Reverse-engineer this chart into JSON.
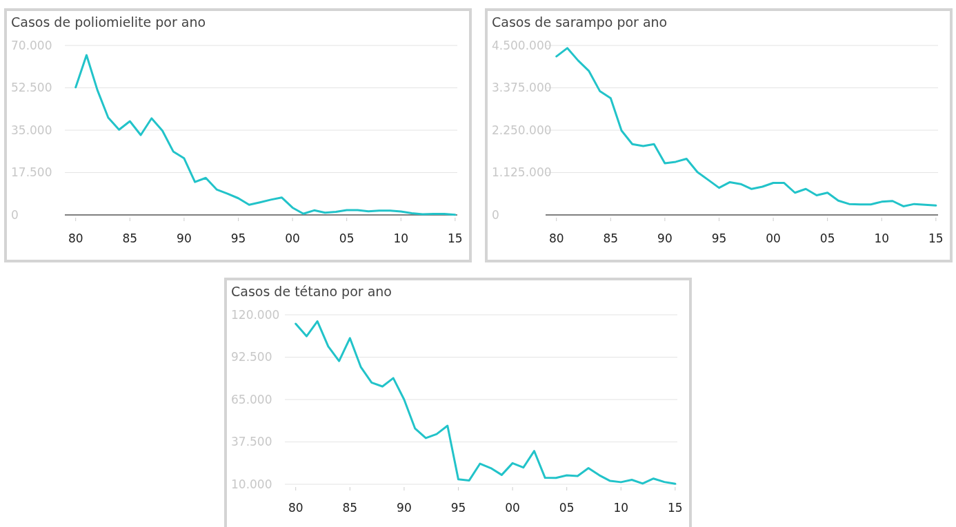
{
  "chart_data": [
    {
      "type": "line",
      "title": "Casos de poliomielite por ano",
      "x": [
        1980,
        1981,
        1982,
        1983,
        1984,
        1985,
        1986,
        1987,
        1988,
        1989,
        1990,
        1991,
        1992,
        1993,
        1994,
        1995,
        1996,
        1997,
        1998,
        1999,
        2000,
        2001,
        2002,
        2003,
        2004,
        2005,
        2006,
        2007,
        2008,
        2009,
        2010,
        2011,
        2012,
        2013,
        2014,
        2015
      ],
      "series": [
        {
          "color": "#22c3c9",
          "values": [
            52700,
            66000,
            51600,
            40200,
            35200,
            38700,
            33000,
            39900,
            34800,
            26200,
            23400,
            13600,
            15300,
            10500,
            8800,
            6900,
            4200,
            5200,
            6300,
            7200,
            3000,
            500,
            1900,
            900,
            1300,
            2000,
            2000,
            1500,
            1800,
            1800,
            1400,
            700,
            300,
            400,
            400,
            100
          ]
        }
      ],
      "xlim": [
        1979,
        2015.2
      ],
      "xticks": [
        {
          "value": 1980,
          "label": "80"
        },
        {
          "value": 1985,
          "label": "85"
        },
        {
          "value": 1990,
          "label": "90"
        },
        {
          "value": 1995,
          "label": "95"
        },
        {
          "value": 2000,
          "label": "00"
        },
        {
          "value": 2005,
          "label": "05"
        },
        {
          "value": 2010,
          "label": "10"
        },
        {
          "value": 2015,
          "label": "15"
        }
      ],
      "ylim": [
        0,
        70000
      ],
      "yticks": [
        0,
        {
          "value": 17500,
          "label": "17.500"
        },
        {
          "value": 35000,
          "label": "35.000"
        },
        {
          "value": 52500,
          "label": "52.500"
        },
        {
          "value": 70000,
          "label": "70.000"
        }
      ],
      "grid": "y"
    },
    {
      "type": "line",
      "title": "Casos de sarampo por ano",
      "x": [
        1980,
        1981,
        1982,
        1983,
        1984,
        1985,
        1986,
        1987,
        1988,
        1989,
        1990,
        1991,
        1992,
        1993,
        1994,
        1995,
        1996,
        1997,
        1998,
        1999,
        2000,
        2001,
        2002,
        2003,
        2004,
        2005,
        2006,
        2007,
        2008,
        2009,
        2010,
        2011,
        2012,
        2013,
        2014,
        2015
      ],
      "series": [
        {
          "color": "#22c3c9",
          "values": [
            4210000,
            4430000,
            4100000,
            3820000,
            3290000,
            3100000,
            2240000,
            1880000,
            1830000,
            1880000,
            1370000,
            1410000,
            1490000,
            1140000,
            930000,
            720000,
            870000,
            820000,
            690000,
            750000,
            850000,
            850000,
            590000,
            690000,
            520000,
            590000,
            380000,
            290000,
            280000,
            280000,
            350000,
            370000,
            230000,
            290000,
            270000,
            250000
          ]
        }
      ],
      "xlim": [
        1979,
        2015.2
      ],
      "xticks": [
        {
          "value": 1980,
          "label": "80"
        },
        {
          "value": 1985,
          "label": "85"
        },
        {
          "value": 1990,
          "label": "90"
        },
        {
          "value": 1995,
          "label": "95"
        },
        {
          "value": 2000,
          "label": "00"
        },
        {
          "value": 2005,
          "label": "05"
        },
        {
          "value": 2010,
          "label": "10"
        },
        {
          "value": 2015,
          "label": "15"
        }
      ],
      "ylim": [
        0,
        4500000
      ],
      "yticks": [
        0,
        {
          "value": 1125000,
          "label": "1.125.000"
        },
        {
          "value": 2250000,
          "label": "2.250.000"
        },
        {
          "value": 3375000,
          "label": "3.375.000"
        },
        {
          "value": 4500000,
          "label": "4.500.000"
        }
      ],
      "grid": "y"
    },
    {
      "type": "line",
      "title": "Casos de tétano por ano",
      "x": [
        1980,
        1981,
        1982,
        1983,
        1984,
        1985,
        1986,
        1987,
        1988,
        1989,
        1990,
        1991,
        1992,
        1993,
        1994,
        1995,
        1996,
        1997,
        1998,
        1999,
        2000,
        2001,
        2002,
        2003,
        2004,
        2005,
        2006,
        2007,
        2008,
        2009,
        2010,
        2011,
        2012,
        2013,
        2014,
        2015
      ],
      "series": [
        {
          "color": "#22c3c9",
          "values": [
            114200,
            106100,
            115800,
            99500,
            90000,
            104900,
            86200,
            76000,
            73500,
            78900,
            65000,
            46300,
            40000,
            42600,
            48000,
            13200,
            12500,
            23400,
            20500,
            16100,
            23700,
            20900,
            31600,
            14200,
            14100,
            15800,
            15400,
            20500,
            15900,
            12200,
            11400,
            12900,
            10500,
            13700,
            11500,
            10300
          ]
        }
      ],
      "xlim": [
        1979,
        2015.2
      ],
      "xticks": [
        {
          "value": 1980,
          "label": "80"
        },
        {
          "value": 1985,
          "label": "85"
        },
        {
          "value": 1990,
          "label": "90"
        },
        {
          "value": 1995,
          "label": "95"
        },
        {
          "value": 2000,
          "label": "00"
        },
        {
          "value": 2005,
          "label": "05"
        },
        {
          "value": 2010,
          "label": "10"
        },
        {
          "value": 2015,
          "label": "15"
        }
      ],
      "ylim": [
        10000,
        120000
      ],
      "yticks": [
        {
          "value": 10000,
          "label": "10.000"
        },
        {
          "value": 37500,
          "label": "37.500"
        },
        {
          "value": 65000,
          "label": "65.000"
        },
        {
          "value": 92500,
          "label": "92.500"
        },
        {
          "value": 120000,
          "label": "120.000"
        }
      ],
      "grid": "y"
    }
  ]
}
